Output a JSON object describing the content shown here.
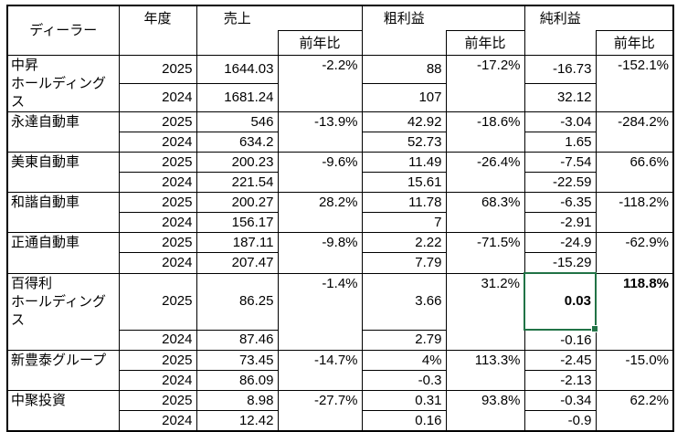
{
  "table": {
    "selection_color": "#217346",
    "headers": {
      "dealer": "ディーラー",
      "year": "年度",
      "sales": "売上",
      "gross_profit": "粗利益",
      "net_profit": "純利益",
      "yoy": "前年比"
    },
    "groups": [
      {
        "dealer": "中昇\nホールディングス",
        "sales_yoy": "-2.2%",
        "gross_yoy": "-17.2%",
        "net_yoy": "-152.1%",
        "rows": [
          {
            "year": "2025",
            "sales": "1644.03",
            "gross": "88",
            "net": "-16.73"
          },
          {
            "year": "2024",
            "sales": "1681.24",
            "gross": "107",
            "net": "32.12"
          }
        ]
      },
      {
        "dealer": "永達自動車",
        "sales_yoy": "-13.9%",
        "gross_yoy": "-18.6%",
        "net_yoy": "-284.2%",
        "rows": [
          {
            "year": "2025",
            "sales": "546",
            "gross": "42.92",
            "net": "-3.04"
          },
          {
            "year": "2024",
            "sales": "634.2",
            "gross": "52.73",
            "net": "1.65"
          }
        ]
      },
      {
        "dealer": "美東自動車",
        "sales_yoy": "-9.6%",
        "gross_yoy": "-26.4%",
        "net_yoy": "66.6%",
        "rows": [
          {
            "year": "2025",
            "sales": "200.23",
            "gross": "11.49",
            "net": "-7.54"
          },
          {
            "year": "2024",
            "sales": "221.54",
            "gross": "15.61",
            "net": "-22.59"
          }
        ]
      },
      {
        "dealer": "和諧自動車",
        "sales_yoy": "28.2%",
        "gross_yoy": "68.3%",
        "net_yoy": "-118.2%",
        "rows": [
          {
            "year": "2025",
            "sales": "200.27",
            "gross": "11.78",
            "net": "-6.35"
          },
          {
            "year": "2024",
            "sales": "156.17",
            "gross": "7",
            "net": "-2.91"
          }
        ]
      },
      {
        "dealer": "正通自動車",
        "sales_yoy": "-9.8%",
        "gross_yoy": "-71.5%",
        "net_yoy": "-62.9%",
        "rows": [
          {
            "year": "2025",
            "sales": "187.11",
            "gross": "2.22",
            "net": "-24.9"
          },
          {
            "year": "2024",
            "sales": "207.47",
            "gross": "7.79",
            "net": "-15.29"
          }
        ]
      },
      {
        "dealer": "百得利\nホールディングス",
        "sales_yoy": "-1.4%",
        "gross_yoy": "31.2%",
        "net_yoy": "118.8%",
        "rows": [
          {
            "year": "2025",
            "sales": "86.25",
            "gross": "3.66",
            "net": "0.03"
          },
          {
            "year": "2024",
            "sales": "87.46",
            "gross": "2.79",
            "net": "-0.16"
          }
        ]
      },
      {
        "dealer": "新豊泰グループ",
        "sales_yoy": "-14.7%",
        "gross_yoy": "113.3%",
        "net_yoy": "-15.0%",
        "rows": [
          {
            "year": "2025",
            "sales": "73.45",
            "gross": "4%",
            "net": "-2.45"
          },
          {
            "year": "2024",
            "sales": "86.09",
            "gross": "-0.3",
            "net": "-2.13"
          }
        ]
      },
      {
        "dealer": "中聚投資",
        "sales_yoy": "-27.7%",
        "gross_yoy": "93.8%",
        "net_yoy": "62.2%",
        "rows": [
          {
            "year": "2025",
            "sales": "8.98",
            "gross": "0.31",
            "net": "-0.34"
          },
          {
            "year": "2024",
            "sales": "12.42",
            "gross": "0.16",
            "net": "-0.9"
          }
        ]
      }
    ]
  }
}
